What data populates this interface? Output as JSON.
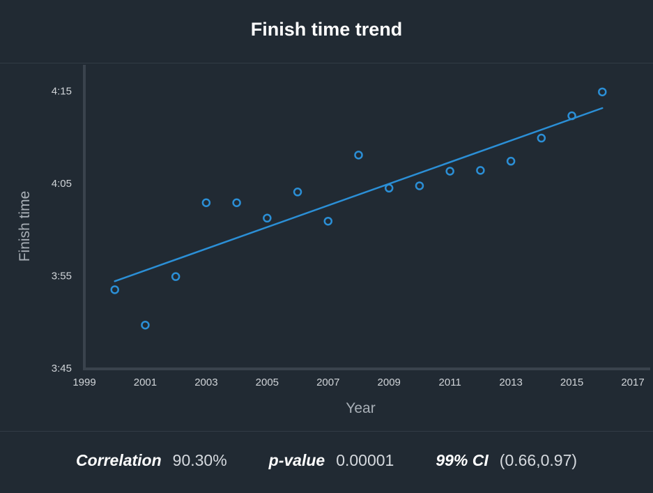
{
  "header": {
    "title": "Finish time trend"
  },
  "chart_data": {
    "type": "scatter",
    "title": "Finish time trend",
    "xlabel": "Year",
    "ylabel": "Finish time",
    "xlim": [
      1999,
      2017
    ],
    "ylim": [
      "3:45",
      "4:18"
    ],
    "x_ticks": [
      "1999",
      "2001",
      "2003",
      "2005",
      "2007",
      "2009",
      "2011",
      "2013",
      "2015",
      "2017"
    ],
    "y_ticks": [
      "3:45",
      "3:55",
      "4:05",
      "4:15"
    ],
    "points": [
      {
        "x": 2000,
        "y": "3:53:30"
      },
      {
        "x": 2001,
        "y": "3:49:40"
      },
      {
        "x": 2002,
        "y": "3:54:55"
      },
      {
        "x": 2003,
        "y": "4:02:55"
      },
      {
        "x": 2004,
        "y": "4:02:55"
      },
      {
        "x": 2005,
        "y": "4:01:15"
      },
      {
        "x": 2006,
        "y": "4:04:05"
      },
      {
        "x": 2007,
        "y": "4:00:55"
      },
      {
        "x": 2008,
        "y": "4:08:05"
      },
      {
        "x": 2009,
        "y": "4:04:30"
      },
      {
        "x": 2010,
        "y": "4:04:45"
      },
      {
        "x": 2011,
        "y": "4:06:20"
      },
      {
        "x": 2012,
        "y": "4:06:25"
      },
      {
        "x": 2013,
        "y": "4:07:25"
      },
      {
        "x": 2014,
        "y": "4:09:55"
      },
      {
        "x": 2015,
        "y": "4:12:20"
      },
      {
        "x": 2016,
        "y": "4:14:55"
      }
    ],
    "trendline": [
      {
        "x": 2000,
        "y": "3:54:25"
      },
      {
        "x": 2016,
        "y": "4:13:10"
      }
    ],
    "colors": {
      "points": "#2b8fd6",
      "trendline": "#2b8fd6",
      "axis": "#3a434d",
      "tick_text": "#d0d4d8",
      "label_text": "#a9b0b7"
    }
  },
  "stats": {
    "correlation_label": "Correlation",
    "correlation_value": "90.30%",
    "pvalue_label": "p-value",
    "pvalue_value": "0.00001",
    "ci_label": "99% CI",
    "ci_value": "(0.66,0.97)"
  }
}
